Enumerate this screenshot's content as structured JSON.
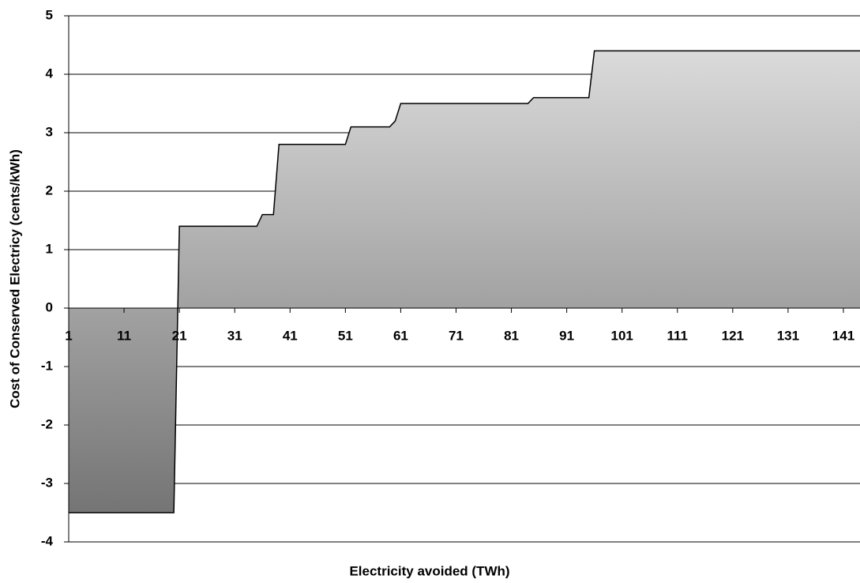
{
  "chart_data": {
    "type": "area",
    "x_label": "Electricity avoided (TWh)",
    "y_label": "Cost of Conserved Electricy (cents/kWh)",
    "x": [
      1,
      20,
      21,
      35,
      36,
      38,
      39,
      51,
      52,
      59,
      60,
      61,
      84,
      85,
      95,
      96,
      144
    ],
    "values": [
      -3.5,
      -3.5,
      1.4,
      1.4,
      1.6,
      1.6,
      2.8,
      2.8,
      3.1,
      3.1,
      3.2,
      3.5,
      3.5,
      3.6,
      3.6,
      4.4,
      4.4
    ],
    "color": "#000000",
    "fill_gradient": [
      "#e2e2e2",
      "#6e6e6e"
    ],
    "xlim": [
      1,
      144
    ],
    "xticks": [
      1,
      11,
      21,
      31,
      41,
      51,
      61,
      71,
      81,
      91,
      101,
      111,
      121,
      131,
      141
    ],
    "ylim": [
      -4,
      5
    ],
    "yticks": [
      -4,
      -3,
      -2,
      -1,
      0,
      1,
      2,
      3,
      4,
      5
    ],
    "grid": true
  }
}
